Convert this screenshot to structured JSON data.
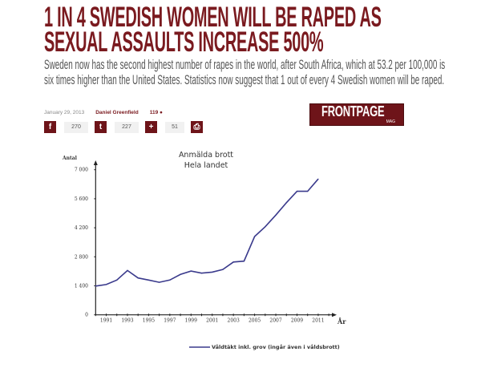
{
  "article": {
    "headline_line1": "1 IN 4 SWEDISH WOMEN WILL BE RAPED AS",
    "headline_line2": "SEXUAL ASSAULTS INCREASE 500%",
    "lead": "Sweden now has the second highest number of rapes in the world, after South Africa, which at 53.2 per 100,000 is six times higher than the United States. Statistics now suggest that 1 out of every 4 Swedish women will be raped.",
    "date": "January 29, 2013",
    "author": "Daniel Greenfield",
    "comments": "119",
    "accent_color": "#7a1a1f"
  },
  "share": {
    "facebook_icon": "facebook-icon",
    "facebook_count": "270",
    "twitter_icon": "twitter-icon",
    "twitter_count": "227",
    "plus_icon": "plus-icon",
    "plus_count": "51",
    "print_icon": "print-icon"
  },
  "logo": {
    "main": "FRONTPAGE",
    "sub": "MAG"
  },
  "chart_data": {
    "type": "line",
    "title": "Anmälda brott",
    "subtitle": "Hela landet",
    "ylabel": "Antal",
    "xlabel": "År",
    "ylim": [
      0,
      7000
    ],
    "yticks": [
      0,
      1400,
      2800,
      4200,
      5600,
      7000
    ],
    "ytick_labels": [
      "0",
      "1 400",
      "2 800",
      "4 200",
      "5 600",
      "7 000"
    ],
    "xtick_labels": [
      "1991",
      "1993",
      "1995",
      "1997",
      "1999",
      "2001",
      "2003",
      "2005",
      "2007",
      "2009",
      "2011"
    ],
    "x": [
      1990,
      1991,
      1992,
      1993,
      1994,
      1995,
      1996,
      1997,
      1998,
      1999,
      2000,
      2001,
      2002,
      2003,
      2004,
      2005,
      2006,
      2007,
      2008,
      2009,
      2010,
      2011
    ],
    "series": [
      {
        "name": "Våldtäkt inkl. grov (ingår även i våldsbrott)",
        "color": "#3a3a8c",
        "values": [
          1390,
          1460,
          1680,
          2140,
          1780,
          1680,
          1570,
          1680,
          1950,
          2110,
          2010,
          2060,
          2190,
          2550,
          2590,
          3780,
          4250,
          4810,
          5410,
          5960,
          5960,
          6550
        ]
      }
    ],
    "legend": "bottom",
    "grid": false
  }
}
